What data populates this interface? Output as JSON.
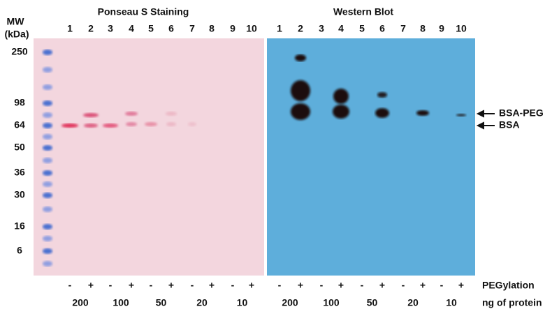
{
  "title_left": "Ponseau S Staining",
  "title_right": "Western Blot",
  "mw_header": [
    "MW",
    "(kDa)"
  ],
  "mw_markers": [
    "250",
    "98",
    "64",
    "50",
    "36",
    "30",
    "16",
    "6"
  ],
  "lanes": [
    "1",
    "2",
    "3",
    "4",
    "5",
    "6",
    "7",
    "8",
    "9",
    "10"
  ],
  "pegylation": [
    "-",
    "+",
    "-",
    "+",
    "-",
    "+",
    "-",
    "+",
    "-",
    "+"
  ],
  "pegylation_label": "PEGylation",
  "amounts": [
    "200",
    "100",
    "50",
    "20",
    "10"
  ],
  "amount_label": "ng of protein",
  "bands": [
    "BSA-PEG",
    "BSA"
  ]
}
